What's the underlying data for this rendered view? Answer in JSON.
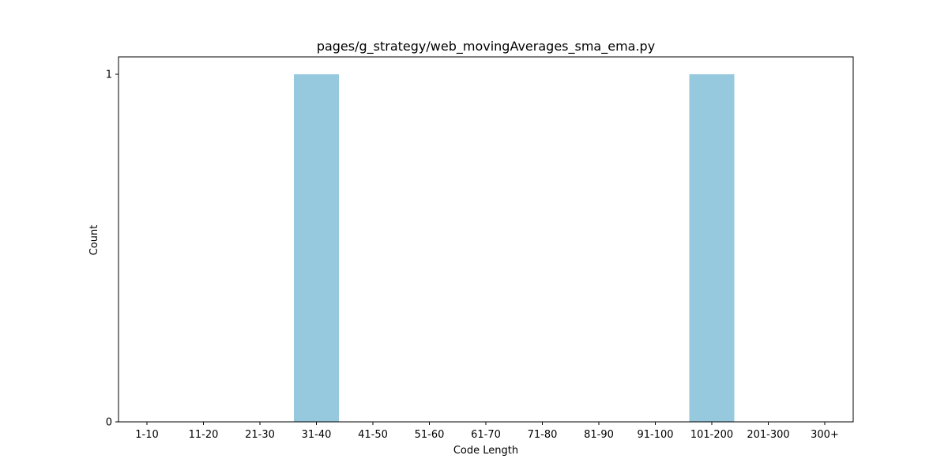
{
  "chart_data": {
    "type": "bar",
    "title": "pages/g_strategy/web_movingAverages_sma_ema.py",
    "xlabel": "Code Length",
    "ylabel": "Count",
    "categories": [
      "1-10",
      "11-20",
      "21-30",
      "31-40",
      "41-50",
      "51-60",
      "61-70",
      "71-80",
      "81-90",
      "91-100",
      "101-200",
      "201-300",
      "300+"
    ],
    "values": [
      0,
      0,
      0,
      1,
      0,
      0,
      0,
      0,
      0,
      0,
      1,
      0,
      0
    ],
    "yticks": [
      0,
      1
    ],
    "ylim": [
      0,
      1
    ],
    "grid": false,
    "legend": "none",
    "bar_color": "#96c9de"
  }
}
